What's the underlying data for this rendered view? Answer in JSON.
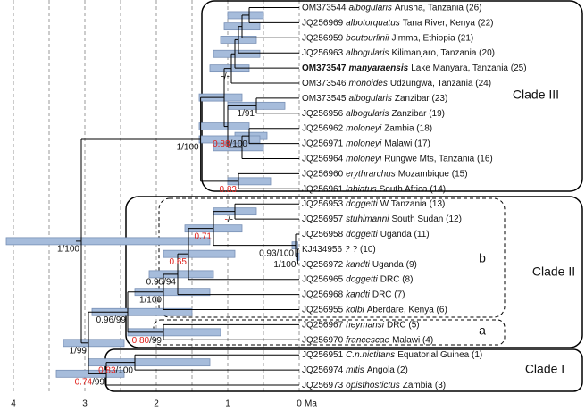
{
  "axis": {
    "ticks": [
      4,
      3,
      2,
      1,
      0
    ],
    "minor": [
      3.5,
      2.5,
      1.5,
      0.5
    ],
    "unit": "Ma"
  },
  "clades": [
    {
      "label": "Clade III"
    },
    {
      "label": "Clade II"
    },
    {
      "label": "Clade I"
    }
  ],
  "subclades": [
    {
      "label": "b"
    },
    {
      "label": "a"
    }
  ],
  "tree": {
    "age": 3.05,
    "hpd": [
      4.1,
      1.25
    ],
    "support": "1/100",
    "children": [
      {
        "age": 1.38,
        "hpd": [
          1.4,
          0.55
        ],
        "support": "1/100",
        "children": [
          {
            "age": 1.05,
            "hpd": [
              1.4,
              0.8
            ],
            "children": [
              {
                "age": 0.95,
                "hpd": [
                  1.25,
                  0.7
                ],
                "support": "-/-",
                "children": [
                  {
                    "age": 0.9,
                    "hpd": [
                      1.2,
                      0.55
                    ],
                    "children": [
                      {
                        "age": 0.85,
                        "hpd": [
                          1.1,
                          0.6
                        ],
                        "children": [
                          {
                            "age": 0.8,
                            "hpd": [
                              1.05,
                              0.55
                            ],
                            "children": [
                              {
                                "age": 0.7,
                                "hpd": [
                                  1.0,
                                  0.5
                                ],
                                "children": [
                                  {
                                    "acc": "OM373544",
                                    "sp": "albogularis",
                                    "loc": "Arusha, Tanzania (26)"
                                  },
                                  {
                                    "acc": "JQ256969",
                                    "sp": "albotorquatus",
                                    "loc": "Tana River, Kenya (22)"
                                  }
                                ]
                              },
                              {
                                "acc": "JQ256959",
                                "sp": "boutourlinii",
                                "loc": "Jimma, Ethiopia (21)"
                              }
                            ]
                          },
                          {
                            "acc": "JQ256963",
                            "sp": "albogularis",
                            "loc": "Kilimanjaro, Tanzania (20)"
                          }
                        ]
                      },
                      {
                        "acc": "OM373547",
                        "sp": "manyaraensis",
                        "loc": "Lake Manyara, Tanzania (25)",
                        "bold": true
                      }
                    ]
                  },
                  {
                    "acc": "OM373546",
                    "sp": "monoides",
                    "loc": "Udzungwa, Tanzania (24)"
                  }
                ]
              },
              {
                "age": 1.0,
                "hpd": [
                  1.4,
                  0.7
                ],
                "children": [
                  {
                    "age": 0.6,
                    "hpd": [
                      1.0,
                      0.2
                    ],
                    "support": "1/91",
                    "children": [
                      {
                        "acc": "OM373545",
                        "sp": "albogularis",
                        "loc": "Zanzibar (23)"
                      },
                      {
                        "acc": "JQ256956",
                        "sp": "albogularis",
                        "loc": "Zanzibar (19)"
                      }
                    ]
                  },
                  {
                    "age": 0.8,
                    "hpd": [
                      1.2,
                      0.5
                    ],
                    "children": [
                      {
                        "age": 0.7,
                        "hpd": [
                          0.9,
                          0.45
                        ],
                        "support": "0.88/100",
                        "support_red": true,
                        "children": [
                          {
                            "acc": "JQ256962",
                            "sp": "moloneyi",
                            "loc": "Zambia (18)"
                          },
                          {
                            "acc": "JQ256971",
                            "sp": "moloneyi",
                            "loc": "Malawi (17)"
                          }
                        ]
                      },
                      {
                        "acc": "JQ256964",
                        "sp": "moloneyi",
                        "loc": "Rungwe Mts, Tanzania (16)"
                      }
                    ]
                  }
                ]
              }
            ]
          },
          {
            "age": 0.85,
            "hpd": [
              1.0,
              0.4
            ],
            "support": "0.83",
            "support_red": true,
            "children": [
              {
                "acc": "JQ256960",
                "sp": "erythrarchus",
                "loc": "Mozambique (15)"
              },
              {
                "acc": "JQ256961",
                "sp": "labiatus",
                "loc": "South Africa (14)"
              }
            ]
          }
        ]
      },
      {
        "age": 2.95,
        "hpd": [
          3.3,
          2.45
        ],
        "support": "1/99",
        "children": [
          {
            "age": 2.4,
            "hpd": [
              2.9,
              1.5
            ],
            "support": "0.96/99",
            "children": [
              {
                "age": 1.9,
                "hpd": [
                  2.3,
                  1.25
                ],
                "support": "1/100",
                "children": [
                  {
                    "age": 1.7,
                    "hpd": [
                      2.1,
                      1.2
                    ],
                    "support": "0.95/94",
                    "children": [
                      {
                        "age": 1.55,
                        "hpd": [
                          1.9,
                          0.9
                        ],
                        "support": "0.65",
                        "support_red": true,
                        "children": [
                          {
                            "age": 1.2,
                            "hpd": [
                              1.6,
                              0.8
                            ],
                            "support": "0.71",
                            "support_red": true,
                            "children": [
                              {
                                "age": 0.9,
                                "hpd": [
                                  1.2,
                                  0.6
                                ],
                                "support": "-/-",
                                "support_red": true,
                                "children": [
                                  {
                                    "acc": "JQ256953",
                                    "sp": "doggetti",
                                    "loc": "W Tanzania (13)"
                                  },
                                  {
                                    "acc": "JQ256957",
                                    "sp": "stuhlmanni",
                                    "loc": "South Sudan (12)"
                                  }
                                ]
                              },
                              {
                                "age": 0.05,
                                "hpd": [
                                  0.1,
                                  0.02
                                ],
                                "support": "0.93/100",
                                "children": [
                                  {
                                    "acc": "JQ256958",
                                    "sp": "doggetti",
                                    "loc": "Uganda (11)"
                                  },
                                  {
                                    "age": 0.02,
                                    "hpd": [
                                      0.04,
                                      0
                                    ],
                                    "support": "1/100",
                                    "children": [
                                      {
                                        "acc": "KJ434956",
                                        "sp": "?",
                                        "loc": "? (10)"
                                      },
                                      {
                                        "acc": "JQ256972",
                                        "sp": "kandti",
                                        "loc": "Uganda (9)"
                                      }
                                    ]
                                  }
                                ]
                              }
                            ]
                          },
                          {
                            "acc": "JQ256965",
                            "sp": "doggetti",
                            "loc": "DRC (8)"
                          }
                        ]
                      },
                      {
                        "acc": "JQ256968",
                        "sp": "kandti",
                        "loc": "DRC (7)"
                      }
                    ]
                  },
                  {
                    "acc": "JQ256955",
                    "sp": "kolbi",
                    "loc": "Aberdare, Kenya (6)"
                  }
                ]
              },
              {
                "age": 1.9,
                "hpd": [
                  2.4,
                  1.1
                ],
                "support": "0.80/99",
                "support_red": true,
                "children": [
                  {
                    "acc": "JQ256967",
                    "sp": "heymansi",
                    "loc": "DRC (5)"
                  },
                  {
                    "acc": "JQ256970",
                    "sp": "francescae",
                    "loc": "Malawi (4)"
                  }
                ]
              }
            ]
          },
          {
            "age": 2.7,
            "hpd": [
              3.4,
              2.45
            ],
            "support": "0.74/99",
            "support_red": true,
            "children": [
              {
                "age": 2.3,
                "hpd": [
                  2.95,
                  1.25
                ],
                "support": "0.83/100",
                "support_red": true,
                "children": [
                  {
                    "acc": "JQ256951",
                    "sp": "C.n.nictitans",
                    "loc": "Equatorial Guinea (1)"
                  },
                  {
                    "acc": "JQ256974",
                    "sp": "mitis",
                    "loc": "Angola (2)"
                  }
                ]
              },
              {
                "acc": "JQ256973",
                "sp": "opisthostictus",
                "loc": "Zambia (3)"
              }
            ]
          }
        ]
      }
    ]
  }
}
